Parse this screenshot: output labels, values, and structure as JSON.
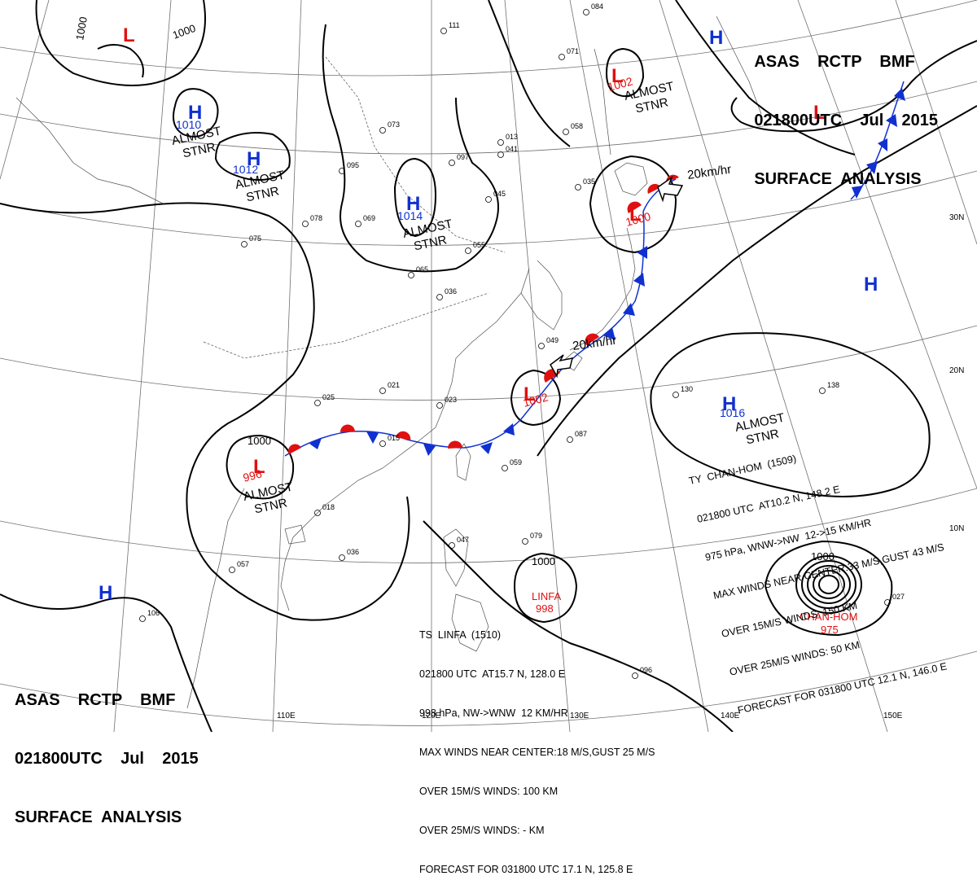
{
  "header_top_right": {
    "line1": "ASAS    RCTP    BMF",
    "line2": "021800UTC    Jul    2015",
    "line3": "SURFACE  ANALYSIS"
  },
  "header_bottom_left": {
    "line1": "ASAS    RCTP    BMF",
    "line2": "021800UTC    Jul    2015",
    "line3": "SURFACE  ANALYSIS"
  },
  "colors": {
    "high": "#1030d0",
    "low": "#e01010",
    "line": "#000000",
    "graticule": "#606060",
    "coast": "#404040"
  },
  "lon_labels": [
    "110E",
    "120E",
    "130E",
    "140E",
    "150E"
  ],
  "lat_labels": [
    "30N",
    "20N",
    "10N"
  ],
  "systems": [
    {
      "type": "H",
      "pressure": "1010",
      "note": "ALMOST\nSTNR"
    },
    {
      "type": "H",
      "pressure": "1012",
      "note": "ALMOST\nSTNR"
    },
    {
      "type": "H",
      "pressure": "1014",
      "note": "ALMOST\nSTNR"
    },
    {
      "type": "L",
      "pressure": "1002",
      "note": "ALMOST\nSTNR"
    },
    {
      "type": "L",
      "pressure": "1000",
      "note": ""
    },
    {
      "type": "L",
      "pressure": "1002",
      "note": ""
    },
    {
      "type": "L",
      "pressure": "996",
      "note": "ALMOST\nSTNR"
    },
    {
      "type": "H",
      "pressure": "1016",
      "note": "ALMOST\nSTNR"
    },
    {
      "type": "L",
      "pressure": "",
      "note": ""
    },
    {
      "type": "L",
      "pressure": "",
      "note": ""
    },
    {
      "type": "H",
      "pressure": "",
      "note": ""
    },
    {
      "type": "H",
      "pressure": "",
      "note": ""
    },
    {
      "type": "H",
      "pressure": "",
      "note": ""
    }
  ],
  "isobar_labels": [
    "1000",
    "1000",
    "1000",
    "1000",
    "1000"
  ],
  "motion_labels": [
    "20km/hr",
    "20km/hr"
  ],
  "typhoon_chanhom": {
    "name": "CHAN-HOM",
    "pressure": "975",
    "info": [
      "TY  CHAN-HOM  (1509)",
      "021800 UTC  AT10.2 N, 148.2 E",
      "975 hPa, WNW->NW  12->15 KM/HR",
      "MAX WINDS NEAR CENTER:33 M/S,GUST 43 M/S",
      "OVER 15M/S WINDS: 150 KM",
      "OVER 25M/S WINDS: 50 KM",
      "FORECAST FOR 031800 UTC 12.1 N, 146.0 E"
    ]
  },
  "storm_linfa": {
    "name": "LINFA",
    "pressure": "998",
    "isobar": "1000",
    "info": [
      "TS  LINFA  (1510)",
      "021800 UTC  AT15.7 N, 128.0 E",
      "998 hPa, NW->WNW  12 KM/HR",
      "MAX WINDS NEAR CENTER:18 M/S,GUST 25 M/S",
      "OVER 15M/S WINDS: 100 KM",
      "OVER 25M/S WINDS: - KM",
      "FORECAST FOR 031800 UTC 17.1 N, 125.8 E"
    ]
  },
  "station_readings": [
    "111",
    "073",
    "095",
    "069",
    "078",
    "075",
    "065",
    "055",
    "045",
    "036",
    "021",
    "025",
    "023",
    "015",
    "049",
    "059",
    "087",
    "058",
    "035",
    "041",
    "097",
    "013",
    "138",
    "130",
    "057",
    "106",
    "036",
    "018",
    "027",
    "071",
    "084",
    "096",
    "079",
    "047"
  ]
}
